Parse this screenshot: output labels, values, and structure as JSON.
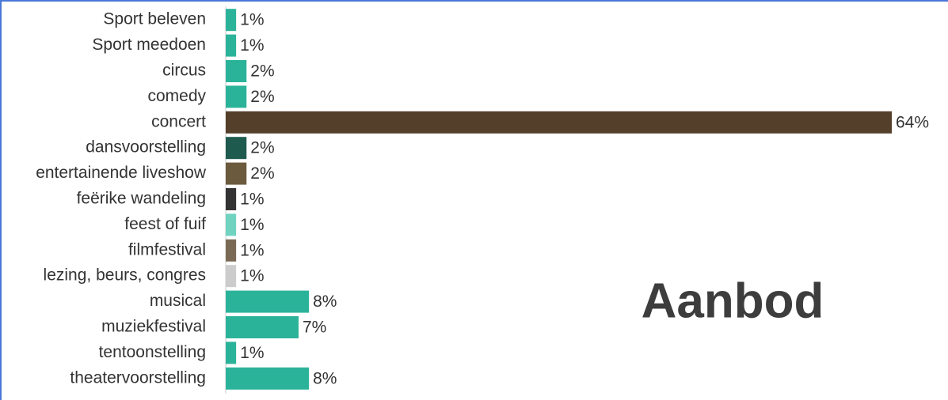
{
  "chart_data": {
    "type": "barh",
    "title": "Aanbod",
    "categories": [
      "Sport beleven",
      "Sport meedoen",
      "circus",
      "comedy",
      "concert",
      "dansvoorstelling",
      "entertainende liveshow",
      "feërike wandeling",
      "feest of fuif",
      "filmfestival",
      "lezing, beurs, congres",
      "musical",
      "muziekfestival",
      "tentoonstelling",
      "theatervoorstelling"
    ],
    "values": [
      1,
      1,
      2,
      2,
      64,
      2,
      2,
      1,
      1,
      1,
      1,
      8,
      7,
      1,
      8
    ],
    "value_labels": [
      "1%",
      "1%",
      "2%",
      "2%",
      "64%",
      "2%",
      "2%",
      "1%",
      "1%",
      "1%",
      "1%",
      "8%",
      "7%",
      "1%",
      "8%"
    ],
    "colors": [
      "#2bb39a",
      "#2bb39a",
      "#2bb39a",
      "#2bb39a",
      "#54402a",
      "#1f5a4e",
      "#6b5a3e",
      "#333333",
      "#6fd3c0",
      "#7a6a55",
      "#cccccc",
      "#2bb39a",
      "#2bb39a",
      "#2bb39a",
      "#2bb39a"
    ]
  }
}
